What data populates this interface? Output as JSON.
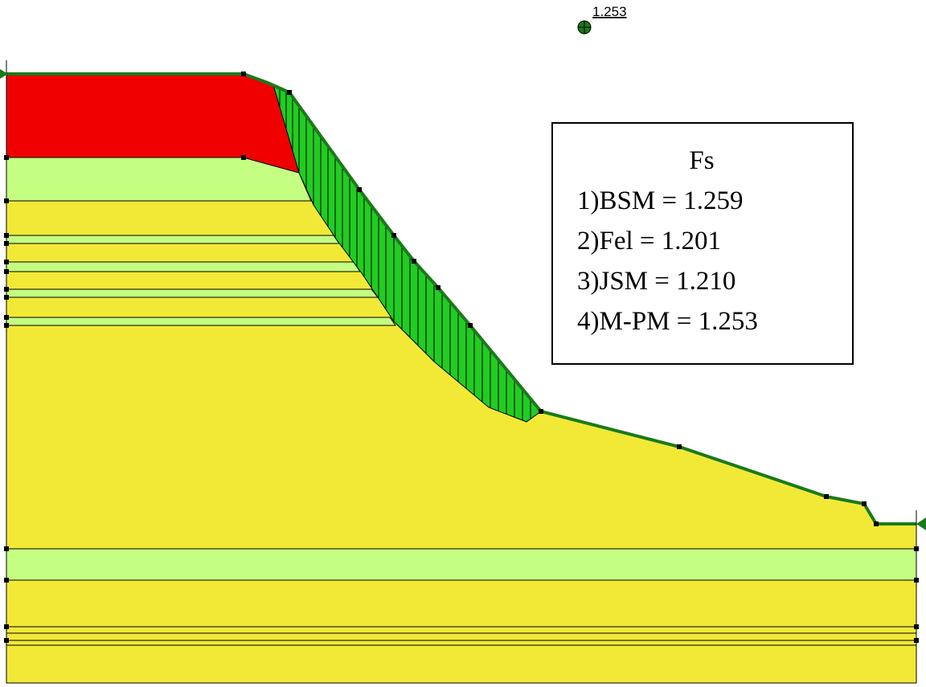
{
  "center_label": "1.253",
  "legend": {
    "title": "Fs",
    "items": [
      "1)BSM = 1.259",
      "2)Fel = 1.201",
      "3)JSM = 1.210",
      "4)M-PM = 1.253"
    ]
  }
}
